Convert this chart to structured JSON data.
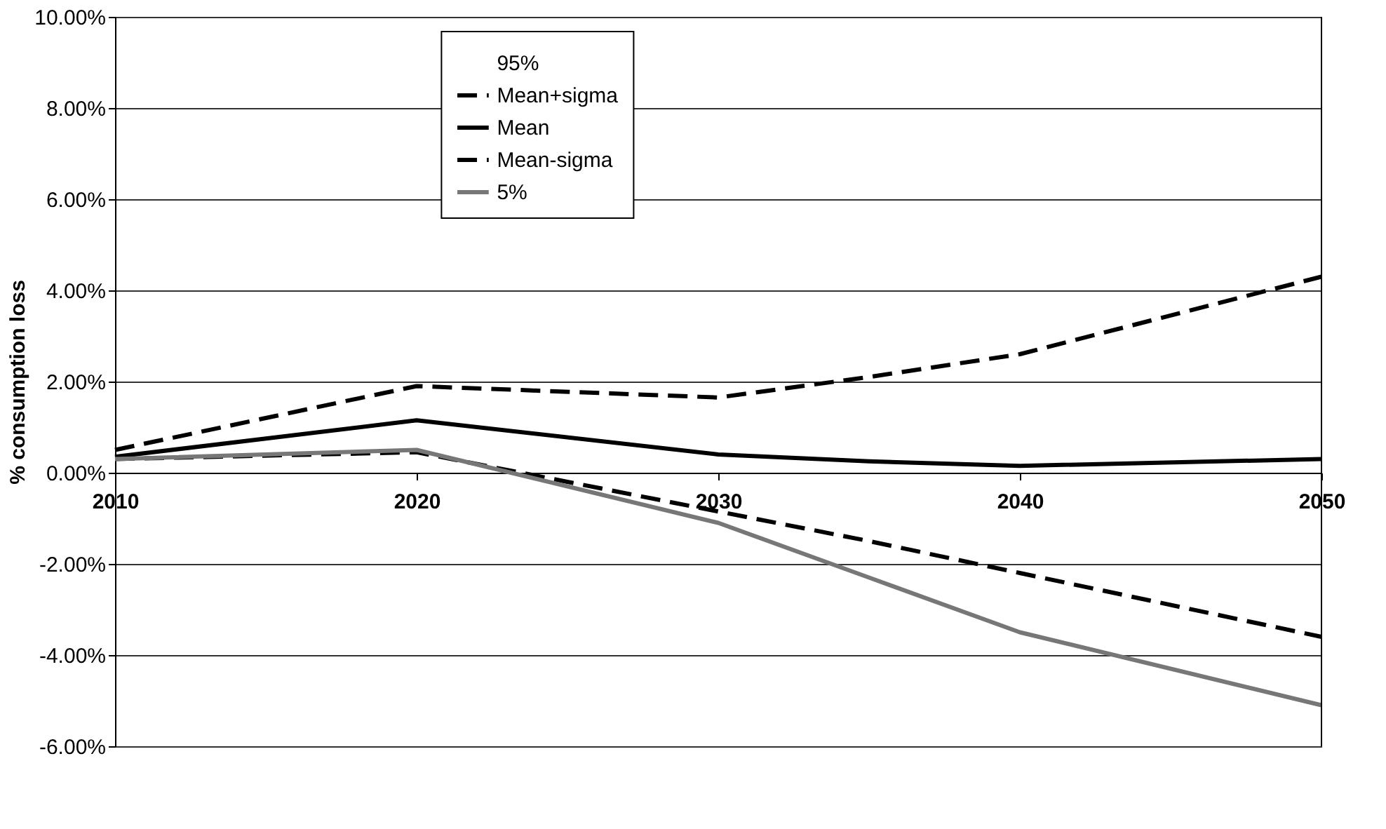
{
  "chart_data": {
    "type": "line",
    "ylabel": "% consumption loss",
    "x": [
      2010,
      2020,
      2030,
      2035,
      2040,
      2050
    ],
    "xlim": [
      2010,
      2050
    ],
    "xticks": [
      2010,
      2020,
      2030,
      2040,
      2050
    ],
    "ylim": [
      -6,
      10
    ],
    "yticks": [
      {
        "value": -6,
        "label": "-6.00%"
      },
      {
        "value": -4,
        "label": "-4.00%"
      },
      {
        "value": -2,
        "label": "-2.00%"
      },
      {
        "value": 0,
        "label": "0.00%"
      },
      {
        "value": 2,
        "label": "2.00%"
      },
      {
        "value": 4,
        "label": "4.00%"
      },
      {
        "value": 6,
        "label": "6.00%"
      },
      {
        "value": 8,
        "label": "8.00%"
      },
      {
        "value": 10,
        "label": "10.00%"
      }
    ],
    "grid": "y",
    "legend": "top left",
    "series": [
      {
        "name": "95%",
        "line_style": "solid",
        "values": [
          null,
          null,
          null,
          null,
          null,
          null
        ]
      },
      {
        "name": "Mean+sigma",
        "color": "#000000",
        "line_style": "dashed",
        "values": [
          0.5,
          1.9,
          1.65,
          2.1,
          2.6,
          4.3
        ]
      },
      {
        "name": "Mean",
        "color": "#000000",
        "line_style": "solid",
        "values": [
          0.35,
          1.15,
          0.4,
          0.25,
          0.15,
          0.3
        ]
      },
      {
        "name": "Mean-sigma",
        "color": "#000000",
        "line_style": "dashed",
        "values": [
          0.3,
          0.45,
          -0.85,
          -1.5,
          -2.2,
          -3.6
        ]
      },
      {
        "name": "5%",
        "color": "#777777",
        "line_style": "solid",
        "values": [
          0.3,
          0.5,
          -1.1,
          -2.3,
          -3.5,
          -5.1
        ]
      }
    ]
  }
}
